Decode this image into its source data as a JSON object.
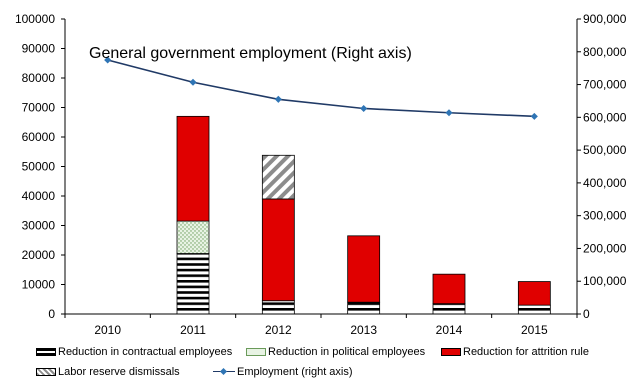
{
  "chart_data": {
    "type": "bar",
    "stacked": true,
    "categories": [
      "2010",
      "2011",
      "2012",
      "2013",
      "2014",
      "2015"
    ],
    "series": [
      {
        "name": "Reduction in contractual employees",
        "key": "contract",
        "values": [
          0,
          20500,
          4500,
          4000,
          3500,
          3000
        ]
      },
      {
        "name": "Reduction in political employees",
        "key": "political",
        "values": [
          0,
          11000,
          0,
          0,
          0,
          0
        ]
      },
      {
        "name": "Reduction for attrition rule",
        "key": "attrition",
        "values": [
          0,
          35500,
          34500,
          22500,
          10000,
          8000
        ]
      },
      {
        "name": "Labor reserve dismissals",
        "key": "labor",
        "values": [
          0,
          0,
          14800,
          0,
          0,
          0
        ]
      }
    ],
    "line_series": {
      "name": "Employment (right axis)",
      "values": [
        775000,
        707000,
        655000,
        627000,
        614000,
        603000
      ]
    },
    "annotation": "General government employment (Right axis)",
    "ylim": [
      0,
      100000
    ],
    "y2lim": [
      0,
      900000
    ],
    "yticks": [
      "0",
      "10000",
      "20000",
      "30000",
      "40000",
      "50000",
      "60000",
      "70000",
      "80000",
      "90000",
      "100000"
    ],
    "y2ticks": [
      "0",
      "100,000",
      "200,000",
      "300,000",
      "400,000",
      "500,000",
      "600,000",
      "700,000",
      "800,000",
      "900,000"
    ],
    "grid": false,
    "legend_position": "bottom",
    "colors": {
      "attrition": "#e00000",
      "political_fill": "#e8f3e4",
      "political_dots": "#6a9a5a",
      "contract_lines": "#000000",
      "labor_stripes": "#8c8c8c",
      "line": "#203a66",
      "marker": "#2f75b5"
    }
  },
  "legend": {
    "row1": [
      "Reduction in contractual employees",
      "Reduction in political employees",
      "Reduction for attrition rule"
    ],
    "row2": [
      "Labor reserve dismissals",
      "Employment (right axis)"
    ]
  }
}
